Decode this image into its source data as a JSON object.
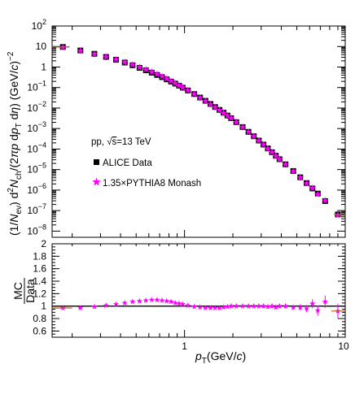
{
  "chart_data": [
    {
      "type": "scatter",
      "panel": "spectrum",
      "yscale": "log",
      "xscale": "log",
      "xlim": [
        0.15,
        10
      ],
      "ylim": [
        5e-09,
        100
      ],
      "ylabel": {
        "prefix": "(1/",
        "N": "N",
        "ev_sub": "ev",
        "mid": ") d",
        "two_sup": "2",
        "N2": "N",
        "ch_sub": "ch",
        "mid2": "/(2",
        "pi": "π",
        "p": "p",
        "d": " d",
        "p2": "p",
        "T_sub": "T",
        "deta": " d",
        "eta": "η",
        "close": ") (GeV/",
        "c": "c",
        "unit_close": ")",
        "minus2": "−2"
      },
      "yticks": [
        {
          "value": 100,
          "base": "10",
          "exp": "2"
        },
        {
          "value": 10,
          "base": "10",
          "exp": ""
        },
        {
          "value": 1,
          "base": "1",
          "exp": ""
        },
        {
          "value": 0.1,
          "base": "10",
          "exp": "−1"
        },
        {
          "value": 0.01,
          "base": "10",
          "exp": "−2"
        },
        {
          "value": 0.001,
          "base": "10",
          "exp": "−3"
        },
        {
          "value": 0.0001,
          "base": "10",
          "exp": "−4"
        },
        {
          "value": 1e-05,
          "base": "10",
          "exp": "−5"
        },
        {
          "value": 1e-06,
          "base": "10",
          "exp": "−6"
        },
        {
          "value": 1e-07,
          "base": "10",
          "exp": "−7"
        },
        {
          "value": 1e-08,
          "base": "10",
          "exp": "−8"
        }
      ],
      "annotation": {
        "prefix": "pp, ",
        "sqrt": "√",
        "s": "s",
        "suffix": "=13 TeV"
      },
      "legend": [
        {
          "label": "ALICE Data",
          "marker": "square",
          "color": "#000000"
        },
        {
          "label": "1.35×PYTHIA8 Monash",
          "marker": "star",
          "color": "#ff00ff"
        }
      ],
      "x": [
        0.175,
        0.225,
        0.275,
        0.325,
        0.375,
        0.425,
        0.475,
        0.525,
        0.575,
        0.625,
        0.675,
        0.725,
        0.775,
        0.825,
        0.875,
        0.925,
        0.975,
        1.05,
        1.15,
        1.25,
        1.35,
        1.45,
        1.55,
        1.65,
        1.75,
        1.85,
        1.95,
        2.1,
        2.3,
        2.5,
        2.7,
        2.9,
        3.1,
        3.3,
        3.5,
        3.7,
        3.9,
        4.25,
        4.75,
        5.25,
        5.75,
        6.25,
        6.75,
        7.5,
        9.0
      ],
      "series": [
        {
          "name": "ALICE Data",
          "values": [
            9.5,
            6.4,
            4.4,
            3.1,
            2.25,
            1.65,
            1.22,
            0.91,
            0.69,
            0.53,
            0.41,
            0.32,
            0.25,
            0.195,
            0.155,
            0.123,
            0.098,
            0.072,
            0.048,
            0.0325,
            0.0225,
            0.0158,
            0.0112,
            0.0081,
            0.0059,
            0.0043,
            0.0032,
            0.00205,
            0.00118,
            0.00069,
            0.00042,
            0.00026,
            0.000165,
            0.000107,
            7e-05,
            4.7e-05,
            3.2e-05,
            1.8e-05,
            8.5e-06,
            4.2e-06,
            2.2e-06,
            1.2e-06,
            6.8e-07,
            2.9e-07,
            6.5e-08
          ]
        },
        {
          "name": "1.35×PYTHIA8 Monash",
          "values": [
            9.2,
            6.2,
            4.35,
            3.15,
            2.33,
            1.74,
            1.3,
            0.98,
            0.75,
            0.58,
            0.45,
            0.35,
            0.27,
            0.208,
            0.163,
            0.128,
            0.101,
            0.073,
            0.048,
            0.032,
            0.022,
            0.0154,
            0.0109,
            0.0079,
            0.0058,
            0.0043,
            0.0032,
            0.00205,
            0.00118,
            0.00069,
            0.00042,
            0.00026,
            0.000165,
            0.000106,
            7e-05,
            4.6e-05,
            3.2e-05,
            1.8e-05,
            8.3e-06,
            4.1e-06,
            2.1e-06,
            1.25e-06,
            6.3e-07,
            3.1e-07,
            6e-08
          ]
        }
      ]
    },
    {
      "type": "scatter",
      "panel": "ratio",
      "xscale": "log",
      "xlim": [
        0.15,
        10
      ],
      "ylim": [
        0.5,
        2.0
      ],
      "reference_line": 1.0,
      "ylabel": {
        "num": "MC",
        "den": "Data"
      },
      "xlabel": {
        "p": "p",
        "T_sub": "T",
        "unit_open": "(GeV/",
        "c": "c",
        "unit_close": ")"
      },
      "yticks": [
        "0.6",
        "0.8",
        "1",
        "1.2",
        "1.4",
        "1.6",
        "1.8",
        "2"
      ],
      "xticks": [
        "1",
        "10"
      ],
      "x": [
        0.175,
        0.225,
        0.275,
        0.325,
        0.375,
        0.425,
        0.475,
        0.525,
        0.575,
        0.625,
        0.675,
        0.725,
        0.775,
        0.825,
        0.875,
        0.925,
        0.975,
        1.05,
        1.15,
        1.25,
        1.35,
        1.45,
        1.55,
        1.65,
        1.75,
        1.85,
        1.95,
        2.1,
        2.3,
        2.5,
        2.7,
        2.9,
        3.1,
        3.3,
        3.5,
        3.7,
        3.9,
        4.25,
        4.75,
        5.25,
        5.75,
        6.25,
        6.75,
        7.5,
        9.0
      ],
      "series": [
        {
          "name": "1.35×PYTHIA8 Monash",
          "values": [
            0.97,
            0.97,
            0.99,
            1.01,
            1.03,
            1.05,
            1.07,
            1.08,
            1.09,
            1.1,
            1.1,
            1.09,
            1.08,
            1.07,
            1.05,
            1.04,
            1.03,
            1.01,
            0.99,
            0.98,
            0.97,
            0.97,
            0.97,
            0.97,
            0.98,
            0.99,
            1.0,
            1.0,
            1.0,
            1.0,
            1.0,
            1.0,
            1.0,
            0.99,
            1.0,
            0.98,
            1.0,
            1.0,
            0.98,
            0.98,
            0.96,
            1.04,
            0.93,
            1.07,
            0.92
          ],
          "errors": [
            0.02,
            0.02,
            0.02,
            0.02,
            0.02,
            0.02,
            0.02,
            0.02,
            0.02,
            0.02,
            0.02,
            0.02,
            0.02,
            0.02,
            0.02,
            0.02,
            0.02,
            0.02,
            0.02,
            0.02,
            0.02,
            0.02,
            0.02,
            0.02,
            0.02,
            0.02,
            0.02,
            0.02,
            0.02,
            0.02,
            0.02,
            0.02,
            0.03,
            0.03,
            0.03,
            0.03,
            0.03,
            0.04,
            0.04,
            0.05,
            0.06,
            0.07,
            0.08,
            0.1,
            0.12
          ]
        }
      ]
    }
  ]
}
